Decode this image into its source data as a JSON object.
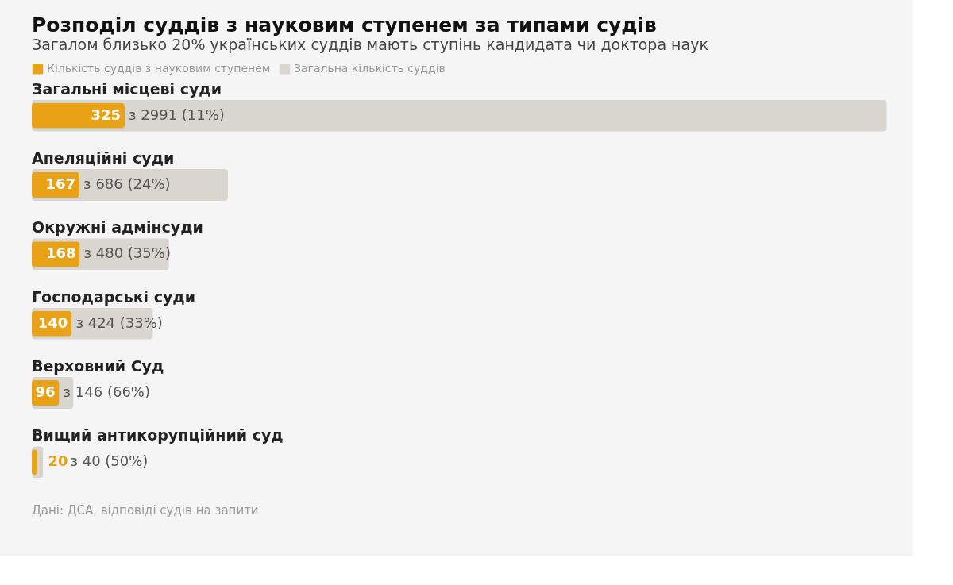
{
  "chart_data": {
    "type": "bar",
    "orientation": "horizontal",
    "title": "Розподіл суддів з науковим ступенем за типами судів",
    "subtitle": "Загалом близько 20% українських суддів мають ступінь кандидата чи доктора наук",
    "categories": [
      "Загальні місцеві суди",
      "Апеляційні суди",
      "Окружні адмінсуди",
      "Господарські суди",
      "Верховний Суд",
      "Вищий антикорупційний суд"
    ],
    "series": [
      {
        "name": "Кількість суддів з науковим ступенем",
        "color": "#e9a115",
        "values": [
          325,
          167,
          168,
          140,
          96,
          20
        ],
        "value_labels": [
          "325",
          "167",
          "168",
          "140",
          "96",
          "20"
        ]
      },
      {
        "name": "Загальна кількість суддів",
        "color": "#d9d5cf",
        "values": [
          2991,
          686,
          480,
          424,
          146,
          40
        ],
        "value_labels": [
          "з 2991 (11%)",
          "з 686 (24%)",
          "з 480 (35%)",
          "з 424 (33%)",
          "з 146 (66%)",
          "з 40 (50%)"
        ]
      }
    ],
    "xlim": [
      0,
      3000
    ],
    "legend": "top left",
    "annotations": [
      "Дані: ДСА, відповіді судів на запити"
    ]
  }
}
